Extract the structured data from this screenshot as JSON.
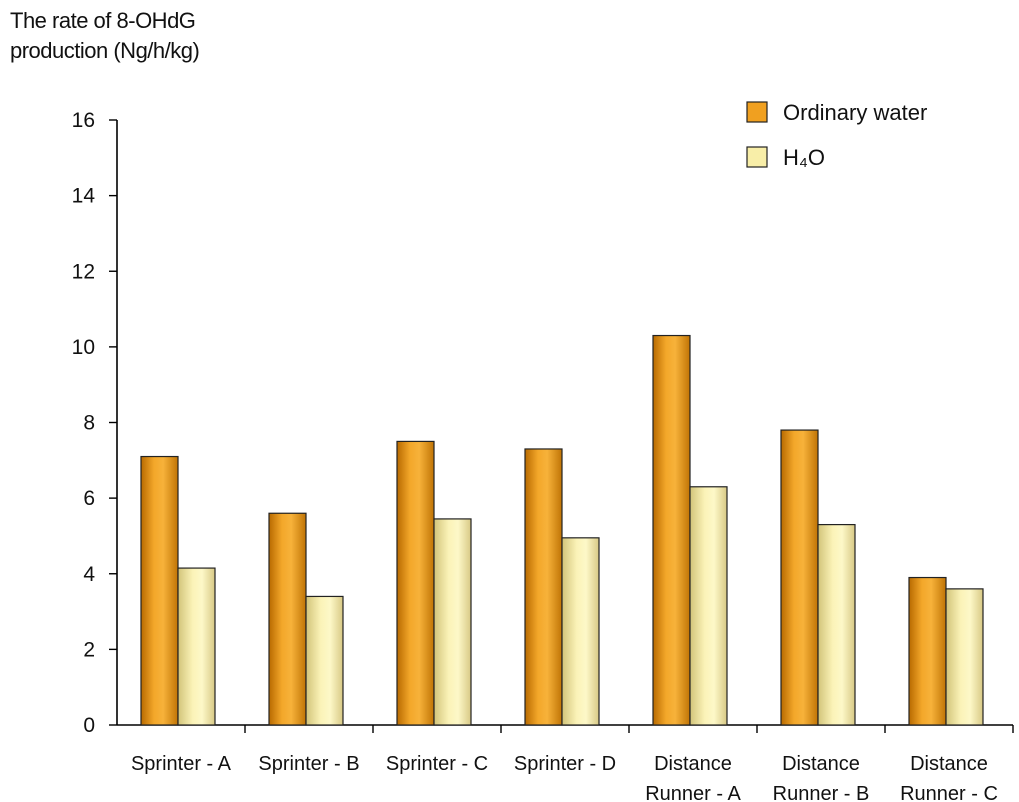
{
  "chart_data": {
    "type": "bar",
    "ylabel_lines": [
      "The rate of 8-OHdG",
      "production (Ng/h/kg)"
    ],
    "categories": [
      [
        "Sprinter - A"
      ],
      [
        "Sprinter - B"
      ],
      [
        "Sprinter - C"
      ],
      [
        "Sprinter - D"
      ],
      [
        "Distance",
        "Runner - A"
      ],
      [
        "Distance",
        "Runner - B"
      ],
      [
        "Distance",
        "Runner - C"
      ]
    ],
    "series": [
      {
        "name": "Ordinary water",
        "color": "#F0A020",
        "values": [
          7.1,
          5.6,
          7.5,
          7.3,
          10.3,
          7.8,
          3.9
        ]
      },
      {
        "name": "H₄O",
        "color": "#F8EEA8",
        "values": [
          4.15,
          3.4,
          5.45,
          4.95,
          6.3,
          5.3,
          3.6
        ]
      }
    ],
    "ylim": [
      0,
      16
    ],
    "yticks": [
      0,
      2,
      4,
      6,
      8,
      10,
      12,
      14,
      16
    ],
    "legend_position": "top-right",
    "grid": false
  }
}
